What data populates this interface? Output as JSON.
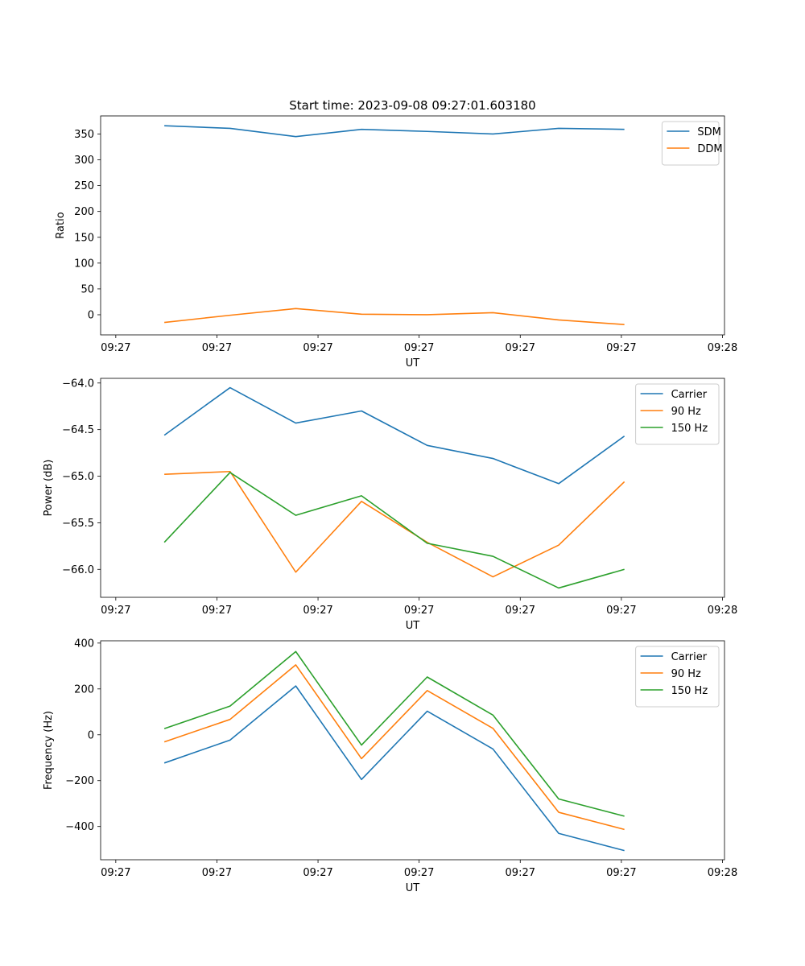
{
  "figure": {
    "title": "Start time: 2023-09-08 09:27:01.603180"
  },
  "chart_data": [
    {
      "type": "line",
      "xlabel": "UT",
      "ylabel": "Ratio",
      "x_ticks": [
        0,
        1,
        2,
        3,
        4,
        5,
        6
      ],
      "x_tick_labels": [
        "09:27",
        "09:27",
        "09:27",
        "09:27",
        "09:27",
        "09:27",
        "09:28"
      ],
      "xlim": [
        -0.15,
        6.02
      ],
      "x": [
        0.48,
        1.13,
        1.78,
        2.43,
        3.08,
        3.73,
        4.38,
        5.03
      ],
      "ylim": [
        -39,
        385
      ],
      "y_ticks": [
        0,
        50,
        100,
        150,
        200,
        250,
        300,
        350
      ],
      "y_tick_labels": [
        "0",
        "50",
        "100",
        "150",
        "200",
        "250",
        "300",
        "350"
      ],
      "legend": "top-right",
      "series": [
        {
          "name": "SDM",
          "color": "#1f77b4",
          "values": [
            366,
            361,
            345,
            359,
            355,
            350,
            361,
            359
          ]
        },
        {
          "name": "DDM",
          "color": "#ff7f0e",
          "values": [
            -15,
            -1,
            12,
            1,
            0,
            4,
            -10,
            -19
          ]
        }
      ]
    },
    {
      "type": "line",
      "xlabel": "UT",
      "ylabel": "Power (dB)",
      "x_ticks": [
        0,
        1,
        2,
        3,
        4,
        5,
        6
      ],
      "x_tick_labels": [
        "09:27",
        "09:27",
        "09:27",
        "09:27",
        "09:27",
        "09:27",
        "09:28"
      ],
      "xlim": [
        -0.15,
        6.02
      ],
      "x": [
        0.48,
        1.13,
        1.78,
        2.43,
        3.08,
        3.73,
        4.38,
        5.03
      ],
      "ylim": [
        -66.3,
        -63.95
      ],
      "y_ticks": [
        -66.0,
        -65.5,
        -65.0,
        -64.5,
        -64.0
      ],
      "y_tick_labels": [
        "−66.0",
        "−65.5",
        "−65.0",
        "−64.5",
        "−64.0"
      ],
      "legend": "top-right",
      "series": [
        {
          "name": "Carrier",
          "color": "#1f77b4",
          "values": [
            -64.56,
            -64.05,
            -64.43,
            -64.3,
            -64.67,
            -64.81,
            -65.08,
            -64.57
          ]
        },
        {
          "name": "90 Hz",
          "color": "#ff7f0e",
          "values": [
            -64.98,
            -64.95,
            -66.03,
            -65.27,
            -65.71,
            -66.08,
            -65.74,
            -65.06
          ]
        },
        {
          "name": "150 Hz",
          "color": "#2ca02c",
          "values": [
            -65.71,
            -64.96,
            -65.42,
            -65.21,
            -65.72,
            -65.86,
            -66.2,
            -66.0
          ]
        }
      ]
    },
    {
      "type": "line",
      "xlabel": "UT",
      "ylabel": "Frequency (Hz)",
      "x_ticks": [
        0,
        1,
        2,
        3,
        4,
        5,
        6
      ],
      "x_tick_labels": [
        "09:27",
        "09:27",
        "09:27",
        "09:27",
        "09:27",
        "09:27",
        "09:28"
      ],
      "xlim": [
        -0.15,
        6.02
      ],
      "x": [
        0.48,
        1.13,
        1.78,
        2.43,
        3.08,
        3.73,
        4.38,
        5.03
      ],
      "ylim": [
        -545,
        410
      ],
      "y_ticks": [
        -400,
        -200,
        0,
        200,
        400
      ],
      "y_tick_labels": [
        "−400",
        "−200",
        "0",
        "200",
        "400"
      ],
      "legend": "top-right",
      "series": [
        {
          "name": "Carrier",
          "color": "#1f77b4",
          "values": [
            -123,
            -23,
            213,
            -195,
            103,
            -62,
            -430,
            -505
          ]
        },
        {
          "name": "90 Hz",
          "color": "#ff7f0e",
          "values": [
            -31,
            67,
            305,
            -104,
            193,
            28,
            -338,
            -413
          ]
        },
        {
          "name": "150 Hz",
          "color": "#2ca02c",
          "values": [
            27,
            125,
            363,
            -45,
            252,
            86,
            -280,
            -355
          ]
        }
      ]
    }
  ]
}
